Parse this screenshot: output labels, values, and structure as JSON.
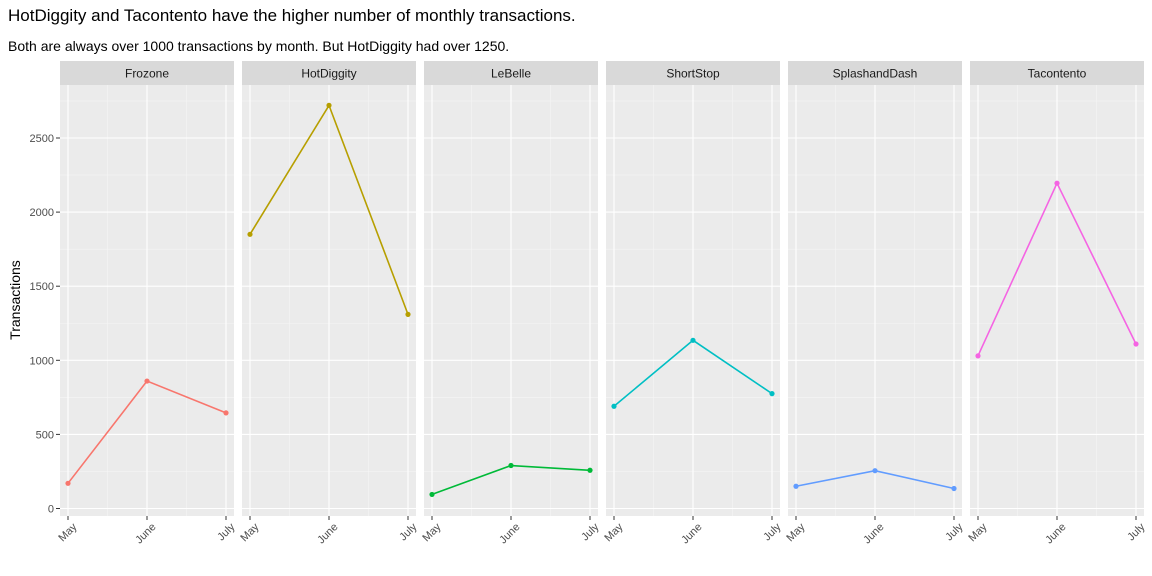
{
  "title": "HotDiggity and Tacontento have the higher number of monthly transactions.",
  "subtitle": "Both are always over 1000 transactions by month. But HotDiggity had over 1250.",
  "chart_data": {
    "type": "line",
    "facet_by": "store",
    "categories": [
      "May",
      "June",
      "July"
    ],
    "ylabel": "Transactions",
    "xlabel": "",
    "ylim": [
      0,
      2850
    ],
    "yticks": [
      0,
      500,
      1000,
      1500,
      2000,
      2500
    ],
    "grid": true,
    "legend": "none",
    "series": [
      {
        "name": "Frozone",
        "color": "#F8766D",
        "values": [
          170,
          860,
          645
        ]
      },
      {
        "name": "HotDiggity",
        "color": "#B79F00",
        "values": [
          1850,
          2720,
          1310
        ]
      },
      {
        "name": "LeBelle",
        "color": "#00BA38",
        "values": [
          95,
          290,
          258
        ]
      },
      {
        "name": "ShortStop",
        "color": "#00BFC4",
        "values": [
          690,
          1135,
          775
        ]
      },
      {
        "name": "SplashandDash",
        "color": "#619CFF",
        "values": [
          150,
          255,
          135
        ]
      },
      {
        "name": "Tacontento",
        "color": "#F564E3",
        "values": [
          1030,
          2195,
          1110
        ]
      }
    ]
  }
}
